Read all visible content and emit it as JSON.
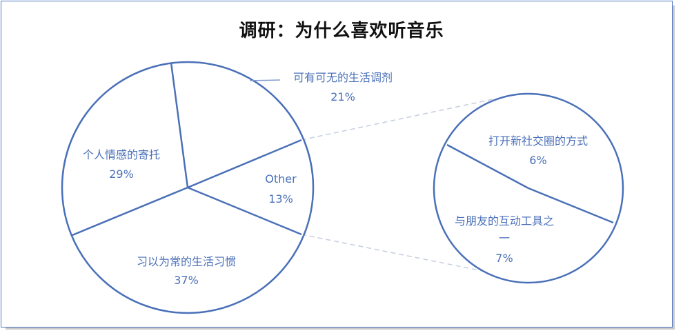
{
  "title": "调研：为什么喜欢听音乐",
  "colors": {
    "stroke": "#4a70b8",
    "label": "#4a70b8",
    "connector": "#c5cde0",
    "title": "#111111"
  },
  "chart_data": {
    "type": "pie",
    "subtype": "pie-of-pie",
    "title": "调研：为什么喜欢听音乐",
    "main": {
      "slices": [
        {
          "label": "可有可无的生活调剂",
          "value": 21,
          "display": "21%"
        },
        {
          "label": "Other",
          "value": 13,
          "display": "13%"
        },
        {
          "label": "习以为常的生活习惯",
          "value": 37,
          "display": "37%"
        },
        {
          "label": "个人情感的寄托",
          "value": 29,
          "display": "29%"
        }
      ]
    },
    "secondary": {
      "source": "Other",
      "slices": [
        {
          "label": "打开新社交圈的方式",
          "value": 6,
          "display": "6%"
        },
        {
          "label": "与朋友的互动工具之一",
          "value": 7,
          "display": "7%"
        }
      ]
    }
  },
  "labels": {
    "s21_name": "可有可无的生活调剂",
    "s21_pct": "21%",
    "other_name": "Other",
    "other_pct": "13%",
    "s37_name": "习以为常的生活习惯",
    "s37_pct": "37%",
    "s29_name": "个人情感的寄托",
    "s29_pct": "29%",
    "s6_name": "打开新社交圈的方式",
    "s6_pct": "6%",
    "s7_name_1": "与朋友的互动工具之",
    "s7_name_2": "一",
    "s7_pct": "7%"
  }
}
